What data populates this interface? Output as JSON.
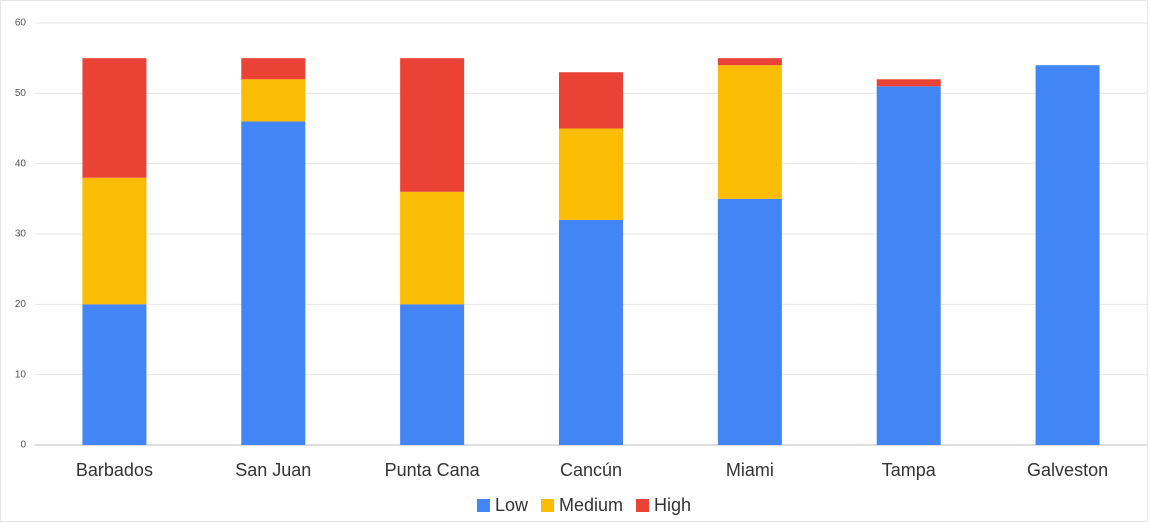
{
  "chart_data": {
    "type": "stacked_bar",
    "categories": [
      "Barbados",
      "San Juan",
      "Punta Cana",
      "Cancún",
      "Miami",
      "Tampa",
      "Galveston"
    ],
    "series": [
      {
        "name": "Low",
        "color": "#4285f4",
        "values": [
          20,
          46,
          20,
          32,
          35,
          51,
          54
        ]
      },
      {
        "name": "Medium",
        "color": "#fbbc04",
        "values": [
          18,
          6,
          16,
          13,
          19,
          0,
          0
        ]
      },
      {
        "name": "High",
        "color": "#ea4335",
        "values": [
          17,
          3,
          19,
          8,
          1,
          1,
          0
        ]
      }
    ],
    "ylim": [
      0,
      60
    ],
    "yticks": [
      0,
      10,
      20,
      30,
      40,
      50,
      60
    ],
    "grid": true,
    "legend": "bottom"
  }
}
